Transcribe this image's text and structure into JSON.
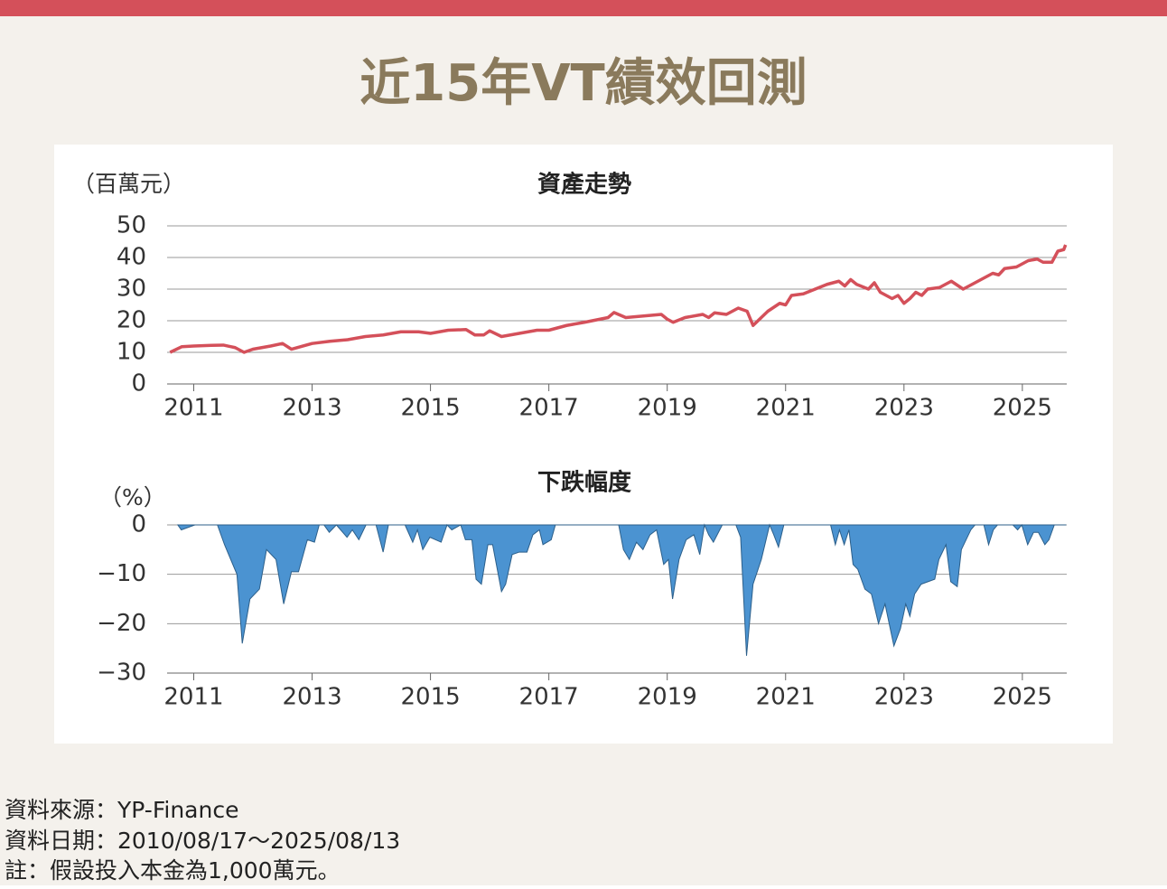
{
  "header": {
    "title": "近15年VT績效回測"
  },
  "footer": {
    "notes": [
      "資料來源：YP-Finance",
      "資料日期：2010/08/17～2025/08/13",
      "註：假設投入本金為1,000萬元。"
    ]
  },
  "chart_data": [
    {
      "type": "line",
      "title": "資產走勢",
      "ylabel": "（百萬元）",
      "color": "#d4505a",
      "x": [
        2010.6,
        2010.8,
        2011.0,
        2011.3,
        2011.5,
        2011.7,
        2011.85,
        2012.0,
        2012.3,
        2012.5,
        2012.65,
        2013.0,
        2013.3,
        2013.6,
        2013.9,
        2014.2,
        2014.5,
        2014.8,
        2015.0,
        2015.3,
        2015.6,
        2015.75,
        2015.9,
        2016.0,
        2016.2,
        2016.5,
        2016.8,
        2017.0,
        2017.3,
        2017.6,
        2018.0,
        2018.1,
        2018.3,
        2018.6,
        2018.9,
        2019.0,
        2019.1,
        2019.3,
        2019.6,
        2019.7,
        2019.8,
        2020.0,
        2020.2,
        2020.35,
        2020.45,
        2020.7,
        2020.9,
        2021.0,
        2021.1,
        2021.3,
        2021.5,
        2021.7,
        2021.9,
        2022.0,
        2022.1,
        2022.2,
        2022.4,
        2022.5,
        2022.6,
        2022.8,
        2022.9,
        2023.0,
        2023.1,
        2023.2,
        2023.3,
        2023.4,
        2023.6,
        2023.8,
        2024.0,
        2024.2,
        2024.5,
        2024.6,
        2024.7,
        2024.9,
        2025.1,
        2025.25,
        2025.35,
        2025.5,
        2025.6,
        2025.7,
        2025.73
      ],
      "values": [
        10,
        11.8,
        12,
        12.2,
        12.3,
        11.5,
        10,
        11,
        12,
        12.8,
        11,
        12.8,
        13.5,
        14,
        15,
        15.5,
        16.5,
        16.5,
        16,
        17,
        17.2,
        15.5,
        15.5,
        16.8,
        15,
        16,
        17,
        17,
        18.5,
        19.5,
        21,
        22.6,
        21,
        21.5,
        22,
        20.5,
        19.5,
        21,
        22,
        21,
        22.5,
        22,
        24,
        23,
        18.5,
        23,
        25.5,
        25,
        28,
        28.5,
        30,
        31.5,
        32.5,
        31,
        33,
        31.5,
        30,
        32,
        29,
        27,
        28,
        25.5,
        27,
        29,
        28,
        30,
        30.5,
        32.5,
        30,
        32,
        35,
        34.5,
        36.5,
        37,
        39,
        39.5,
        38.5,
        38.5,
        42,
        42.5,
        44
      ],
      "xlim": [
        2010.55,
        2025.75
      ],
      "xticks": [
        2011,
        2013,
        2015,
        2017,
        2019,
        2021,
        2023,
        2025
      ],
      "ylim": [
        0,
        50
      ],
      "yticks": [
        0,
        10,
        20,
        30,
        40,
        50
      ],
      "grid": true
    },
    {
      "type": "area",
      "title": "下跌幅度",
      "ylabel": "（%）",
      "color": "#4b93d1",
      "x": [
        2010.73,
        2010.79,
        2011.02,
        2011.4,
        2011.52,
        2011.73,
        2011.82,
        2011.95,
        2012.11,
        2012.23,
        2012.39,
        2012.52,
        2012.65,
        2012.77,
        2012.92,
        2013.04,
        2013.12,
        2013.2,
        2013.29,
        2013.41,
        2013.59,
        2013.68,
        2013.79,
        2013.91,
        2014.08,
        2014.2,
        2014.29,
        2014.57,
        2014.7,
        2014.78,
        2014.87,
        2014.99,
        2015.18,
        2015.28,
        2015.36,
        2015.51,
        2015.59,
        2015.7,
        2015.77,
        2015.86,
        2015.97,
        2016.05,
        2016.2,
        2016.27,
        2016.38,
        2016.5,
        2016.63,
        2016.73,
        2016.84,
        2016.9,
        2017.04,
        2017.11,
        2018.18,
        2018.26,
        2018.36,
        2018.48,
        2018.59,
        2018.71,
        2018.82,
        2018.94,
        2019.02,
        2019.09,
        2019.2,
        2019.32,
        2019.45,
        2019.55,
        2019.63,
        2019.7,
        2019.78,
        2019.93,
        2020.16,
        2020.24,
        2020.34,
        2020.45,
        2020.59,
        2020.73,
        2020.8,
        2020.88,
        2020.97,
        2021.76,
        2021.84,
        2021.91,
        2021.99,
        2022.07,
        2022.14,
        2022.22,
        2022.34,
        2022.45,
        2022.57,
        2022.68,
        2022.83,
        2022.94,
        2023.03,
        2023.1,
        2023.18,
        2023.29,
        2023.52,
        2023.59,
        2023.71,
        2023.79,
        2023.9,
        2023.97,
        2024.13,
        2024.2,
        2024.35,
        2024.43,
        2024.51,
        2024.58,
        2024.84,
        2024.92,
        2024.99,
        2025.09,
        2025.19,
        2025.27,
        2025.38,
        2025.45,
        2025.54,
        2025.74
      ],
      "values": [
        0,
        -1,
        0,
        0,
        -4,
        -10,
        -24,
        -15,
        -13,
        -5,
        -7,
        -16,
        -9.5,
        -9.5,
        -3,
        -3.5,
        0,
        0,
        -1.5,
        0,
        -2.5,
        -1,
        -3,
        0,
        0,
        -5.5,
        0,
        0,
        -3.5,
        -1,
        -5,
        -2.5,
        -3.5,
        0,
        -1,
        0,
        -3,
        -3,
        -11,
        -12,
        -4,
        -4,
        -13.5,
        -12,
        -6,
        -5.5,
        -5.5,
        -2,
        -1,
        -4,
        -3,
        0,
        0,
        -5,
        -7,
        -3.5,
        -5,
        -2,
        -1,
        -8,
        -7,
        -15,
        -7,
        -3,
        -2,
        -6,
        0,
        -2,
        -3.5,
        0,
        0,
        -2.5,
        -26.5,
        -12,
        -7,
        0,
        -2,
        -4.5,
        0,
        0,
        -4,
        -1,
        -4,
        -1,
        -8,
        -9,
        -13,
        -14,
        -20,
        -16,
        -24.5,
        -21,
        -16,
        -18.5,
        -14,
        -12,
        -11,
        -7,
        -4,
        -11.5,
        -12.5,
        -5,
        -1,
        0,
        0,
        -4,
        -1,
        0,
        0,
        -1,
        0,
        -4,
        -1.5,
        -1.5,
        -4,
        -3,
        0,
        0
      ],
      "xlim": [
        2010.55,
        2025.75
      ],
      "xticks": [
        2011,
        2013,
        2015,
        2017,
        2019,
        2021,
        2023,
        2025
      ],
      "ylim": [
        -30,
        0
      ],
      "yticks": [
        0,
        {
          "value": -10,
          "label": "−10"
        },
        {
          "value": -20,
          "label": "−20"
        },
        {
          "value": -30,
          "label": "−30"
        }
      ],
      "grid": true
    }
  ]
}
